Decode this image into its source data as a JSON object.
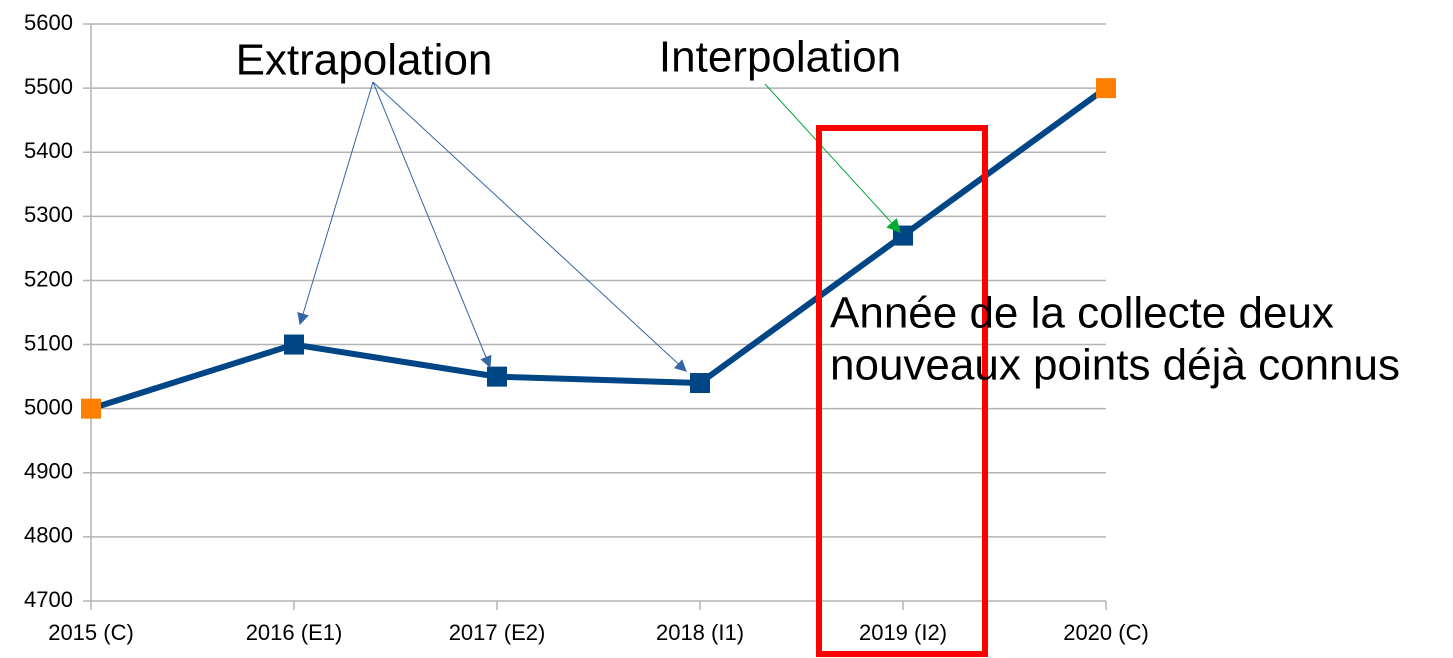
{
  "chart_data": {
    "type": "line",
    "categories": [
      "2015 (C)",
      "2016 (E1)",
      "2017 (E2)",
      "2018 (I1)",
      "2019 (I2)",
      "2020 (C)"
    ],
    "values": [
      5000,
      5100,
      5050,
      5040,
      5270,
      5500
    ],
    "color": "#004586",
    "point_colors": [
      "#ff8000",
      "#004586",
      "#004586",
      "#004586",
      "#004586",
      "#ff8000"
    ],
    "ylim": [
      4700,
      5600
    ],
    "yticks": [
      4700,
      4800,
      4900,
      5000,
      5100,
      5200,
      5300,
      5400,
      5500,
      5600
    ],
    "grid": true,
    "annotations": {
      "extrapolation": "Extrapolation",
      "interpolation": "Interpolation",
      "note": [
        "Année de la collecte deux",
        "nouveaux points déjà connus"
      ]
    }
  }
}
